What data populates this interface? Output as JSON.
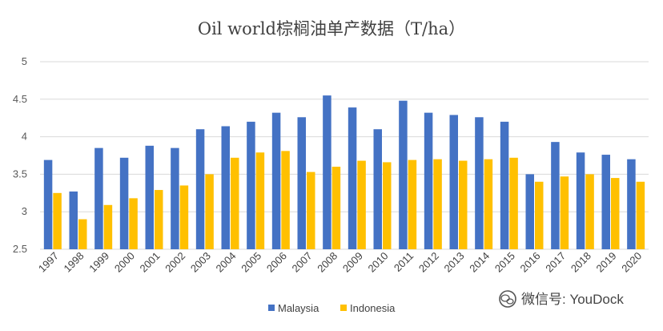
{
  "chart_data": {
    "type": "bar",
    "title": "Oil world棕榈油单产数据（T/ha）",
    "categories": [
      "1997",
      "1998",
      "1999",
      "2000",
      "2001",
      "2002",
      "2003",
      "2004",
      "2005",
      "2006",
      "2007",
      "2008",
      "2009",
      "2010",
      "2011",
      "2012",
      "2013",
      "2014",
      "2015",
      "2016",
      "2017",
      "2018",
      "2019",
      "2020"
    ],
    "series": [
      {
        "name": "Malaysia",
        "color": "#4472C4",
        "values": [
          3.69,
          3.27,
          3.85,
          3.72,
          3.88,
          3.85,
          4.1,
          4.14,
          4.2,
          4.32,
          4.26,
          4.55,
          4.39,
          4.1,
          4.48,
          4.32,
          4.29,
          4.26,
          4.2,
          3.5,
          3.93,
          3.79,
          3.76,
          3.7
        ]
      },
      {
        "name": "Indonesia",
        "color": "#FFC000",
        "values": [
          3.25,
          2.9,
          3.09,
          3.18,
          3.29,
          3.35,
          3.5,
          3.72,
          3.79,
          3.81,
          3.53,
          3.6,
          3.68,
          3.66,
          3.69,
          3.7,
          3.68,
          3.7,
          3.72,
          3.4,
          3.47,
          3.5,
          3.45,
          3.4
        ]
      }
    ],
    "ylim": [
      2.5,
      5
    ],
    "yticks": [
      "2.5",
      "3",
      "3.5",
      "4",
      "4.5",
      "5"
    ],
    "grid": true,
    "legend_position": "bottom"
  },
  "watermark": {
    "text": "微信号: YouDock",
    "icon": "wechat-icon"
  }
}
